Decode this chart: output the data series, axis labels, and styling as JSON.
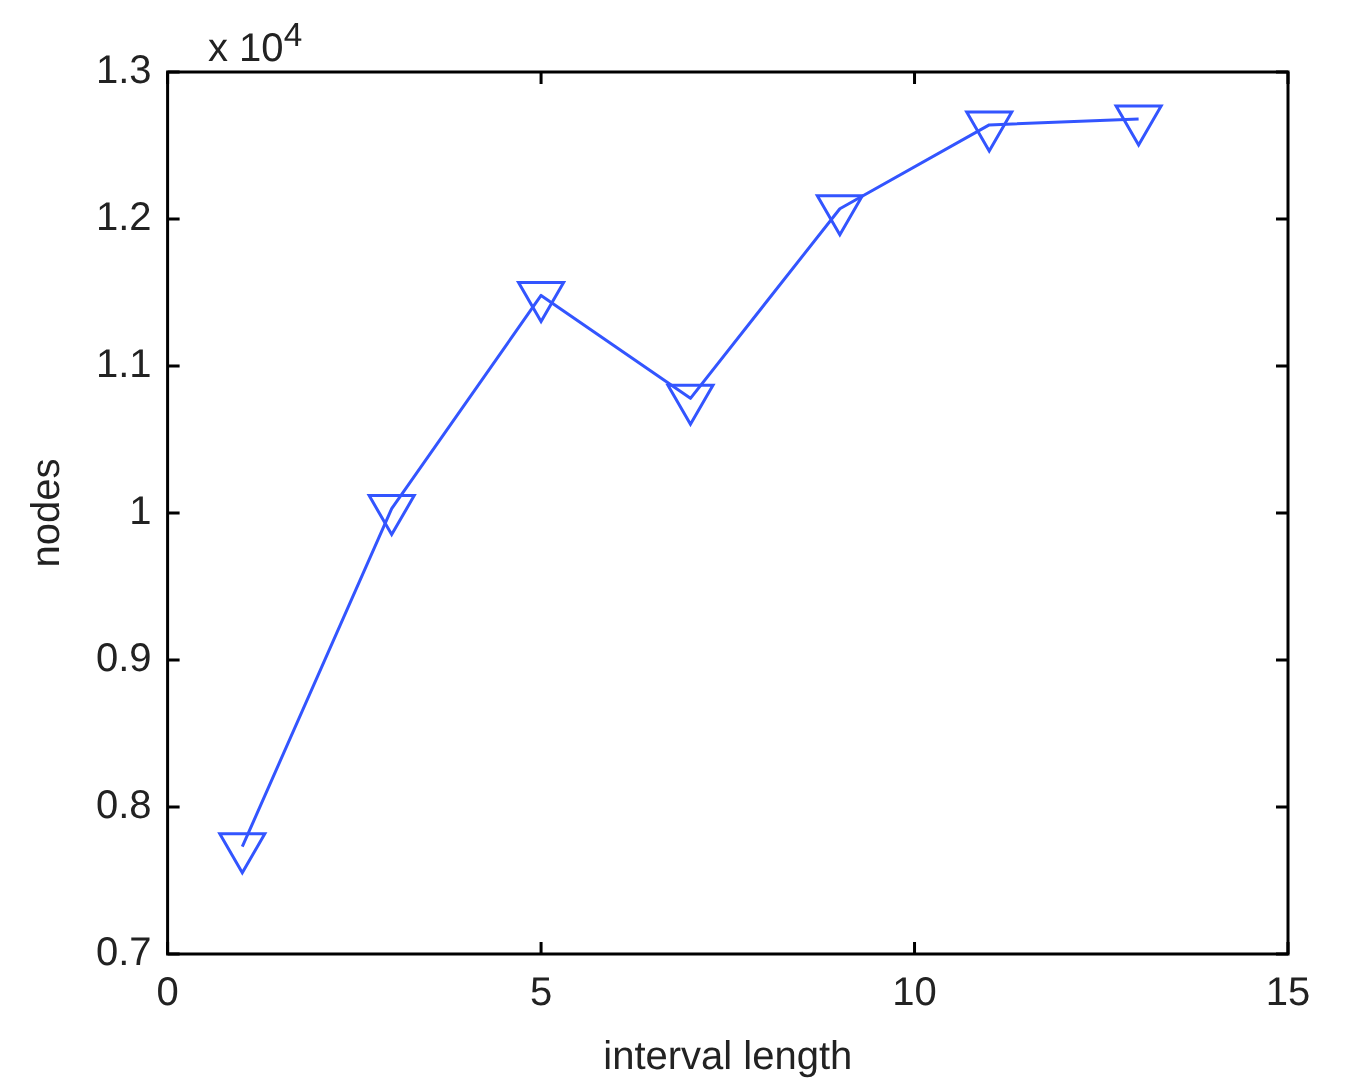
{
  "chart_data": {
    "type": "line",
    "xlabel": "interval length",
    "ylabel": "nodes",
    "annotations": [
      "x 10$^{4}$"
    ],
    "x": [
      1,
      3,
      5,
      7,
      9,
      11,
      13
    ],
    "series": [
      {
        "color": "#3355ff",
        "values": [
          0.773,
          1.003,
          1.148,
          1.078,
          1.207,
          1.264,
          1.268
        ]
      }
    ],
    "xlim": [
      0,
      15
    ],
    "xticks": [
      0,
      5,
      10,
      15
    ],
    "ylim": [
      0.7,
      1.3
    ],
    "yticks": [
      0.7,
      0.8,
      0.9,
      1,
      1.1,
      1.2,
      1.3
    ],
    "grid": false,
    "legend": false,
    "marker": "triangle",
    "line_style": "solid"
  }
}
